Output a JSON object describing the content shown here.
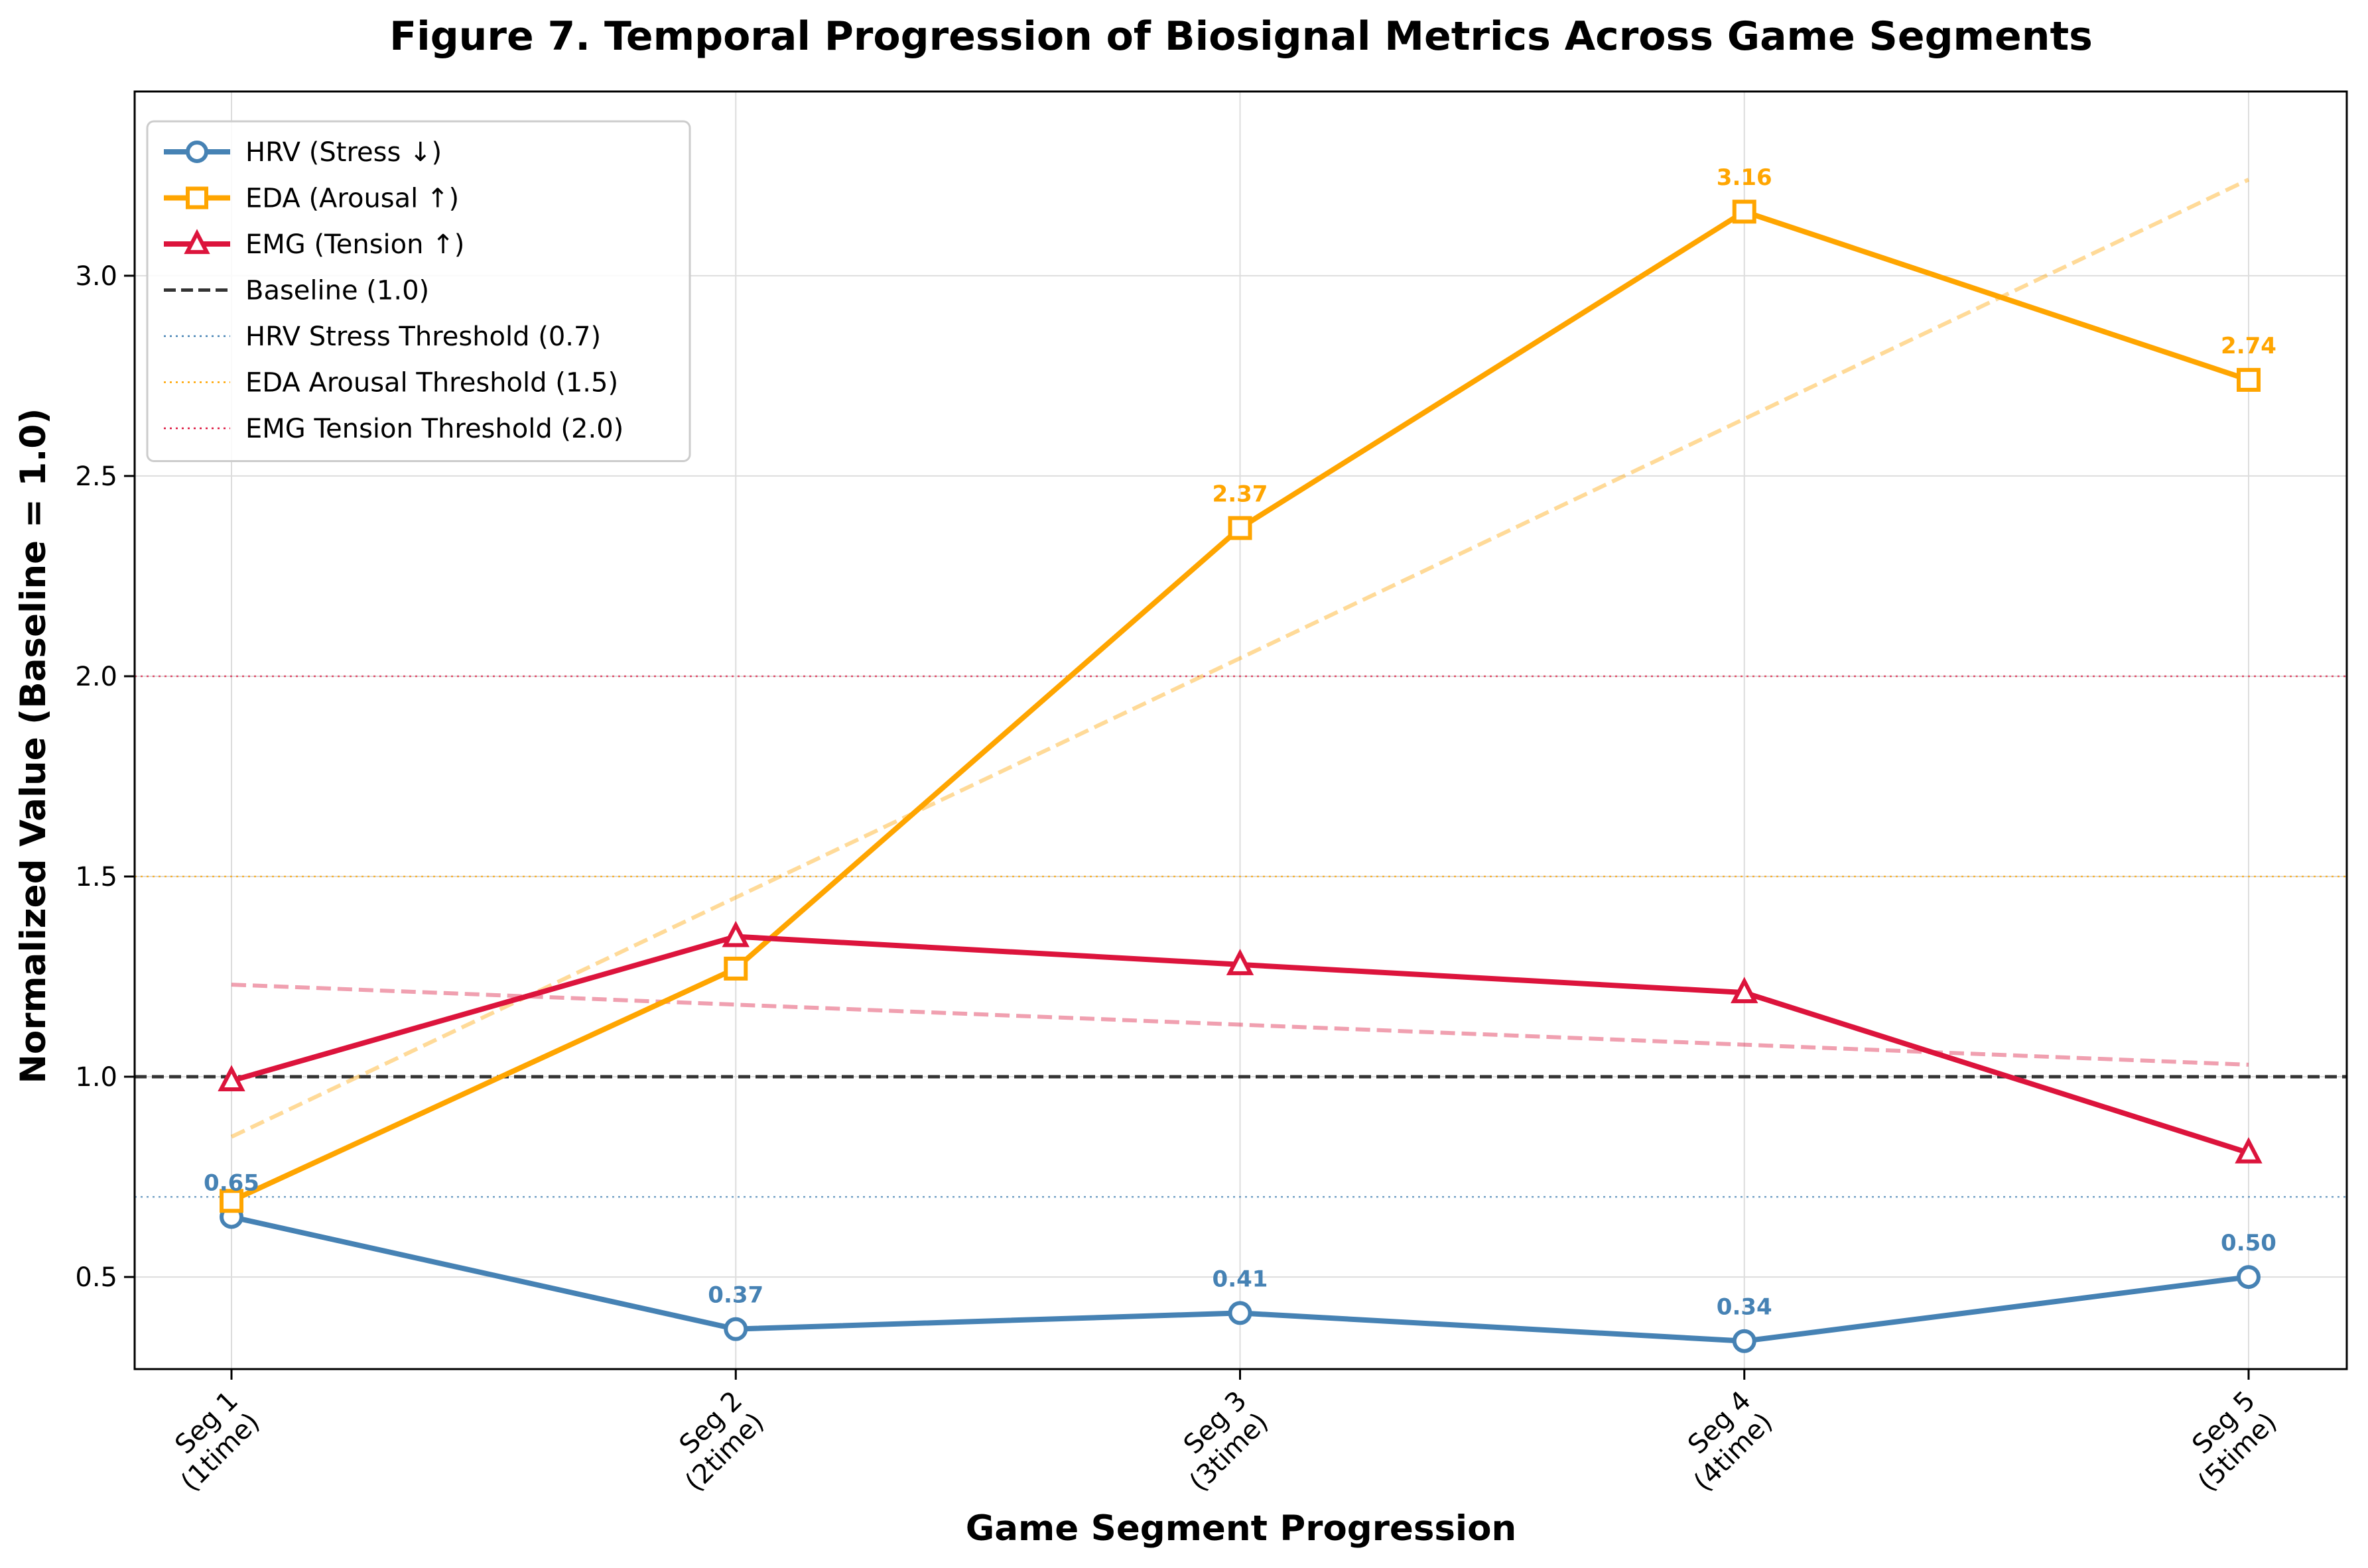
{
  "chart_data": {
    "type": "line",
    "title": "Figure 7. Temporal Progression of Biosignal Metrics Across Game Segments",
    "xlabel": "Game Segment Progression",
    "ylabel": "Normalized Value (Baseline = 1.0)",
    "categories": [
      [
        "Seg 1",
        "(1time)"
      ],
      [
        "Seg 2",
        "(2time)"
      ],
      [
        "Seg 3",
        "(3time)"
      ],
      [
        "Seg 4",
        "(4time)"
      ],
      [
        "Seg 5",
        "(5time)"
      ]
    ],
    "ylim": [
      0.27,
      3.46
    ],
    "yticks": [
      0.5,
      1.0,
      1.5,
      2.0,
      2.5,
      3.0
    ],
    "ytick_labels": [
      "0.5",
      "1.0",
      "1.5",
      "2.0",
      "2.5",
      "3.0"
    ],
    "grid": true,
    "legend_position": "top-left",
    "series": [
      {
        "key": "hrv",
        "name": "HRV (Stress ↓)",
        "color": "#4682b4",
        "marker": "circle",
        "values": [
          0.65,
          0.37,
          0.41,
          0.34,
          0.5
        ],
        "labels": [
          "0.65",
          "0.37",
          "0.41",
          "0.34",
          "0.50"
        ],
        "trend": null
      },
      {
        "key": "eda",
        "name": "EDA (Arousal ↑)",
        "color": "#ffa500",
        "marker": "square",
        "values": [
          0.69,
          1.27,
          2.37,
          3.16,
          2.74
        ],
        "labels": [
          "",
          "",
          "2.37",
          "3.16",
          "2.74"
        ],
        "trend": [
          0.85,
          3.24
        ]
      },
      {
        "key": "emg",
        "name": "EMG (Tension ↑)",
        "color": "#dc143c",
        "marker": "triangle",
        "values": [
          0.99,
          1.35,
          1.28,
          1.21,
          0.81
        ],
        "labels": [
          "",
          "",
          "",
          "",
          ""
        ],
        "trend": [
          1.23,
          1.03
        ]
      }
    ],
    "reference_lines": [
      {
        "key": "baseline",
        "name": "Baseline (1.0)",
        "value": 1.0,
        "color": "#333333",
        "style": "dashed"
      },
      {
        "key": "hrv-threshold",
        "name": "HRV Stress Threshold (0.7)",
        "value": 0.7,
        "color": "#4682b4",
        "style": "dotted"
      },
      {
        "key": "eda-threshold",
        "name": "EDA Arousal Threshold (1.5)",
        "value": 1.5,
        "color": "#ffa500",
        "style": "dotted"
      },
      {
        "key": "emg-threshold",
        "name": "EMG Tension Threshold (2.0)",
        "value": 2.0,
        "color": "#dc143c",
        "style": "dotted"
      }
    ]
  }
}
